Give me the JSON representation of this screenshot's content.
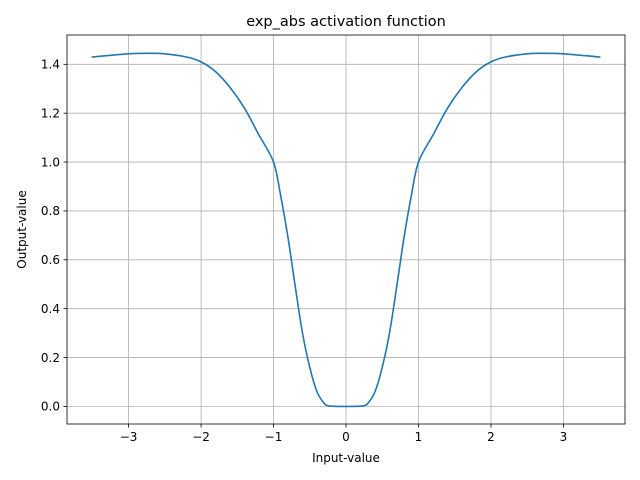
{
  "chart_data": {
    "type": "line",
    "title": "exp_abs activation function",
    "xlabel": "Input-value",
    "ylabel": "Output-value",
    "xlim": [
      -3.85,
      3.85
    ],
    "ylim": [
      -0.072,
      1.52
    ],
    "grid": true,
    "x_ticks": [
      -3,
      -2,
      -1,
      0,
      1,
      2,
      3
    ],
    "x_tick_labels": [
      "−3",
      "−2",
      "−1",
      "0",
      "1",
      "2",
      "3"
    ],
    "y_ticks": [
      0.0,
      0.2,
      0.4,
      0.6,
      0.8,
      1.0,
      1.2,
      1.4
    ],
    "y_tick_labels": [
      "0.0",
      "0.2",
      "0.4",
      "0.6",
      "0.8",
      "1.0",
      "1.2",
      "1.4"
    ],
    "series": [
      {
        "color": "#1f77b4",
        "x": [
          -3.5,
          -3.0,
          -2.7,
          -2.5,
          -2.2,
          -2.0,
          -1.8,
          -1.6,
          -1.4,
          -1.2,
          -1.0,
          -0.9,
          -0.8,
          -0.7,
          -0.6,
          -0.5,
          -0.4,
          -0.3,
          -0.25,
          -0.2,
          0.0,
          0.2,
          0.25,
          0.3,
          0.4,
          0.5,
          0.6,
          0.7,
          0.8,
          0.9,
          1.0,
          1.2,
          1.4,
          1.6,
          1.8,
          2.0,
          2.2,
          2.5,
          2.7,
          3.0,
          3.5
        ],
        "y": [
          1.43,
          1.443,
          1.445,
          1.443,
          1.43,
          1.41,
          1.37,
          1.305,
          1.22,
          1.11,
          1.0,
          0.86,
          0.69,
          0.49,
          0.3,
          0.16,
          0.06,
          0.012,
          0.003,
          0.001,
          0.0,
          0.001,
          0.003,
          0.012,
          0.06,
          0.16,
          0.3,
          0.49,
          0.69,
          0.86,
          1.0,
          1.11,
          1.22,
          1.305,
          1.37,
          1.41,
          1.43,
          1.443,
          1.445,
          1.443,
          1.43
        ]
      }
    ]
  }
}
